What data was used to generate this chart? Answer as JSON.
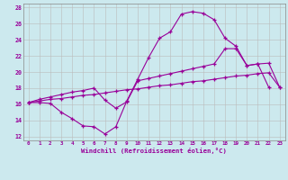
{
  "xlabel": "Windchill (Refroidissement éolien,°C)",
  "bg_color": "#cce9ee",
  "line_color": "#990099",
  "grid_color": "#bbbbbb",
  "xlim": [
    -0.5,
    23.5
  ],
  "ylim": [
    11.5,
    28.5
  ],
  "xticks": [
    0,
    1,
    2,
    3,
    4,
    5,
    6,
    7,
    8,
    9,
    10,
    11,
    12,
    13,
    14,
    15,
    16,
    17,
    18,
    19,
    20,
    21,
    22,
    23
  ],
  "yticks": [
    12,
    14,
    16,
    18,
    20,
    22,
    24,
    26,
    28
  ],
  "line1_x": [
    0,
    1,
    2,
    3,
    4,
    5,
    6,
    7,
    8,
    9,
    10,
    11,
    12,
    13,
    14,
    15,
    16,
    17,
    18,
    19,
    20,
    21,
    22
  ],
  "line1_y": [
    16.2,
    16.2,
    16.1,
    15.0,
    14.2,
    13.3,
    13.2,
    12.3,
    13.2,
    16.4,
    19.1,
    21.8,
    24.2,
    25.0,
    27.2,
    27.5,
    27.3,
    26.5,
    24.2,
    23.2,
    20.8,
    21.0,
    18.1
  ],
  "line2_x": [
    0,
    1,
    2,
    3,
    4,
    5,
    6,
    7,
    8,
    9,
    10,
    11,
    12,
    13,
    14,
    15,
    16,
    17,
    18,
    19,
    20,
    21,
    22,
    23
  ],
  "line2_y": [
    16.2,
    16.4,
    16.6,
    16.7,
    16.9,
    17.1,
    17.2,
    17.4,
    17.6,
    17.8,
    17.9,
    18.1,
    18.3,
    18.4,
    18.6,
    18.8,
    18.9,
    19.1,
    19.3,
    19.5,
    19.6,
    19.8,
    19.9,
    18.1
  ],
  "line3_x": [
    0,
    1,
    2,
    3,
    4,
    5,
    6,
    7,
    8,
    9,
    10,
    11,
    12,
    13,
    14,
    15,
    16,
    17,
    18,
    19,
    20,
    21,
    22,
    23
  ],
  "line3_y": [
    16.2,
    16.6,
    16.9,
    17.2,
    17.5,
    17.7,
    18.0,
    16.5,
    15.5,
    16.3,
    18.9,
    19.2,
    19.5,
    19.8,
    20.1,
    20.4,
    20.7,
    21.0,
    22.9,
    22.9,
    20.8,
    21.0,
    21.1,
    18.1
  ]
}
